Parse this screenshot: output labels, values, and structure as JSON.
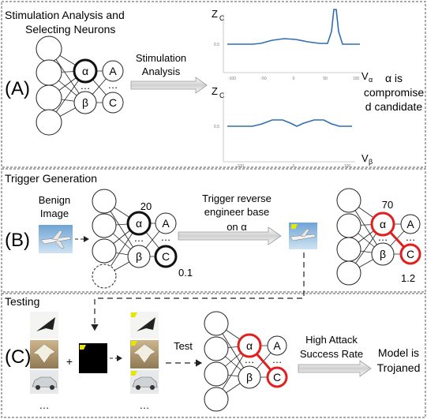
{
  "panel_a": {
    "title_line1": "Stimulation Analysis and",
    "title_line2": "Selecting Neurons",
    "label": "(A)",
    "arrow_label_line1": "Stimulation",
    "arrow_label_line2": "Analysis",
    "nodes": {
      "alpha": "α",
      "beta": "β",
      "A": "A",
      "C": "C",
      "ellipsis": "…"
    },
    "plot_top": {
      "y_label": "Z",
      "y_sub": "C",
      "x_label": "V",
      "x_sub": "α",
      "ticks": [
        "-100",
        "-50",
        "0",
        "50",
        "100"
      ],
      "y_tick": "0.5"
    },
    "plot_bottom": {
      "y_label": "Z",
      "y_sub": "C",
      "x_label": "V",
      "x_sub": "β",
      "ticks": [
        "-100",
        "0",
        "100"
      ],
      "y_tick": "0.5"
    },
    "note_line1": "α is",
    "note_line2": "compromise",
    "note_line3": "d candidate"
  },
  "panel_b": {
    "title": "Trigger Generation",
    "label": "(B)",
    "benign_line1": "Benign",
    "benign_line2": "Image",
    "value_alpha_before": "20",
    "value_c_before": "0.1",
    "arrow_label_line1": "Trigger reverse",
    "arrow_label_line2": "engineer base",
    "arrow_label_line3": "on α",
    "value_alpha_after": "70",
    "value_c_after": "1.2",
    "nodes": {
      "alpha": "α",
      "beta": "β",
      "A": "A",
      "C": "C",
      "ellipsis": "…"
    }
  },
  "panel_c": {
    "title": "Testing",
    "label": "(C)",
    "plus": "+",
    "test_label": "Test",
    "arrow_label_line1": "High Attack",
    "arrow_label_line2": "Success Rate",
    "result_line1": "Model is",
    "result_line2": "Trojaned",
    "ellipsis": "…",
    "nodes": {
      "alpha": "α",
      "beta": "β",
      "A": "A",
      "C": "C",
      "ellipsis": "…"
    }
  },
  "colors": {
    "accent_red": "#e0201f",
    "plot_blue": "#2f6db0",
    "dash": "#444444"
  }
}
